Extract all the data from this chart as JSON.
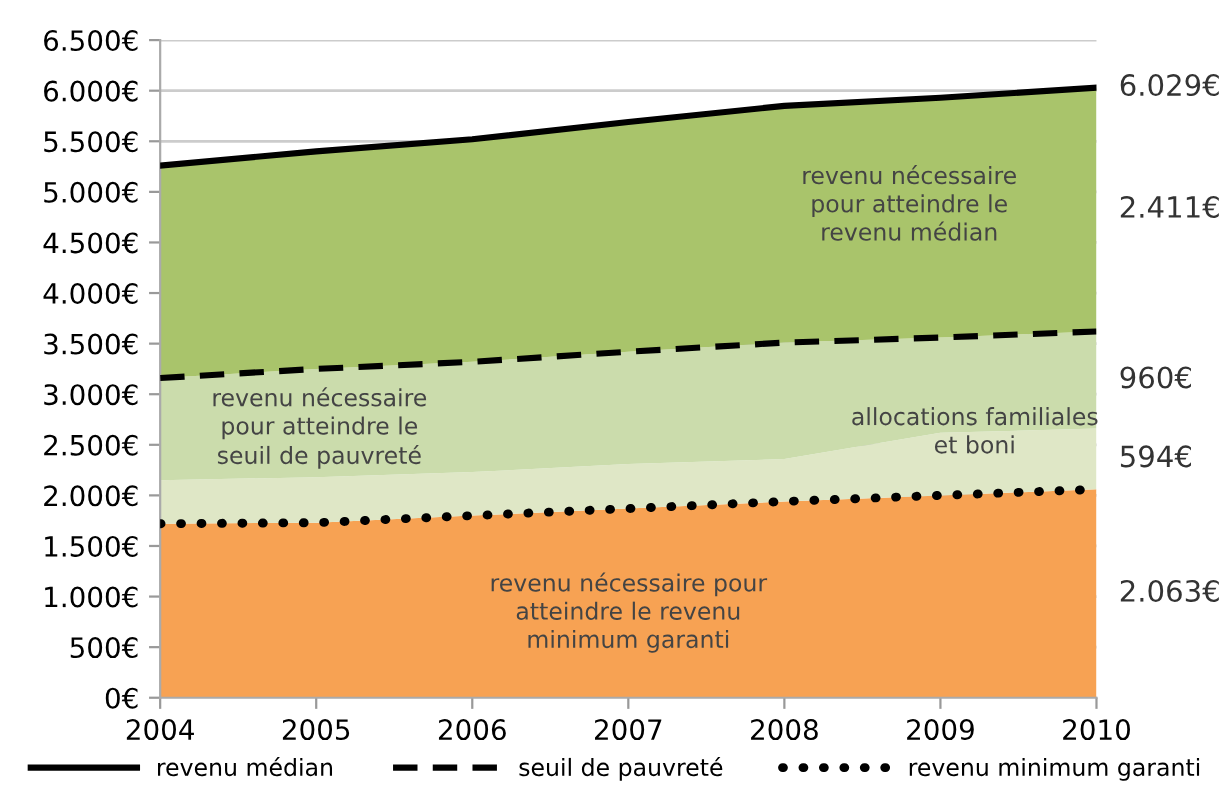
{
  "chart_data": {
    "type": "area",
    "x": [
      2004,
      2005,
      2006,
      2007,
      2008,
      2009,
      2010
    ],
    "xlim": [
      2004,
      2010
    ],
    "xticks": [
      2004,
      2005,
      2006,
      2007,
      2008,
      2009,
      2010
    ],
    "ylim": [
      0,
      6500
    ],
    "yticks": [
      {
        "value": 0,
        "label": "0€"
      },
      {
        "value": 500,
        "label": "500€"
      },
      {
        "value": 1000,
        "label": "1.000€"
      },
      {
        "value": 1500,
        "label": "1.500€"
      },
      {
        "value": 2000,
        "label": "2.000€"
      },
      {
        "value": 2500,
        "label": "2.500€"
      },
      {
        "value": 3000,
        "label": "3.000€"
      },
      {
        "value": 3500,
        "label": "3.500€"
      },
      {
        "value": 4000,
        "label": "4.000€"
      },
      {
        "value": 4500,
        "label": "4.500€"
      },
      {
        "value": 5000,
        "label": "5.000€"
      },
      {
        "value": 5500,
        "label": "5.500€"
      },
      {
        "value": 6000,
        "label": "6.000€"
      },
      {
        "value": 6500,
        "label": "6.500€"
      }
    ],
    "grid": "y",
    "legend": "bottom",
    "series": [
      {
        "name": "revenu minimum garanti",
        "color": "#f7a253",
        "line_style": "dotted",
        "values": [
          1720,
          1730,
          1800,
          1870,
          1940,
          2000,
          2060
        ]
      },
      {
        "color": "#dfe7c6",
        "values": [
          2150,
          2180,
          2230,
          2310,
          2360,
          2620,
          2660
        ]
      },
      {
        "name": "seuil de pauvreté",
        "color": "#cbdcac",
        "line_style": "dashed",
        "values": [
          3160,
          3250,
          3320,
          3420,
          3510,
          3560,
          3620
        ]
      },
      {
        "name": "revenu médian",
        "color": "#a9c46b",
        "line_style": "solid",
        "values": [
          5260,
          5400,
          5520,
          5690,
          5850,
          5930,
          6030
        ]
      }
    ],
    "annotations": [
      "revenu nécessaire pour\natteindre le revenu\nminimum garanti",
      "allocations familiales\net boni",
      "revenu nécessaire\npour atteindre le\nseuil de pauvreté",
      "revenu nécessaire\npour atteindre le\nrevenu médian",
      "2.063€",
      "594€",
      "960€",
      "2.411€",
      "6.029€"
    ]
  }
}
